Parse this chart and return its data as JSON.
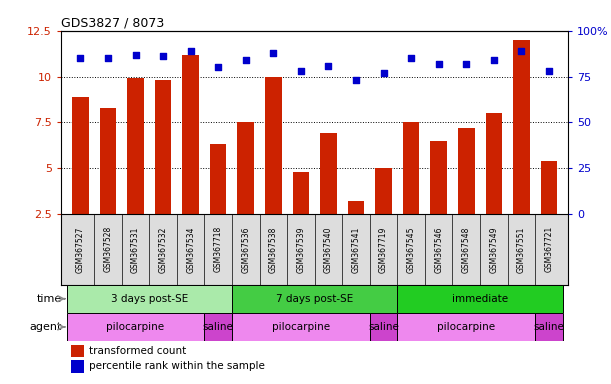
{
  "title": "GDS3827 / 8073",
  "samples": [
    "GSM367527",
    "GSM367528",
    "GSM367531",
    "GSM367532",
    "GSM367534",
    "GSM367718",
    "GSM367536",
    "GSM367538",
    "GSM367539",
    "GSM367540",
    "GSM367541",
    "GSM367719",
    "GSM367545",
    "GSM367546",
    "GSM367548",
    "GSM367549",
    "GSM367551",
    "GSM367721"
  ],
  "bar_values": [
    8.9,
    8.3,
    9.9,
    9.8,
    11.2,
    6.3,
    7.5,
    10.0,
    4.8,
    6.9,
    3.2,
    5.0,
    7.5,
    6.5,
    7.2,
    8.0,
    12.0,
    5.4
  ],
  "dot_values_pct": [
    85,
    85,
    87,
    86,
    89,
    80,
    84,
    88,
    78,
    81,
    73,
    77,
    85,
    82,
    82,
    84,
    89,
    78
  ],
  "bar_color": "#cc2200",
  "dot_color": "#0000cc",
  "ylim_left": [
    2.5,
    12.5
  ],
  "ylim_right": [
    0,
    100
  ],
  "yticks_left": [
    2.5,
    5.0,
    7.5,
    10.0,
    12.5
  ],
  "yticks_right": [
    0,
    25,
    50,
    75,
    100
  ],
  "ytick_labels_left": [
    "2.5",
    "5",
    "7.5",
    "10",
    "12.5"
  ],
  "ytick_labels_right": [
    "0",
    "25",
    "50",
    "75",
    "100%"
  ],
  "time_groups": [
    {
      "label": "3 days post-SE",
      "start": 0,
      "end": 5,
      "color": "#aaeaaa"
    },
    {
      "label": "7 days post-SE",
      "start": 6,
      "end": 11,
      "color": "#44cc44"
    },
    {
      "label": "immediate",
      "start": 12,
      "end": 17,
      "color": "#22cc22"
    }
  ],
  "agent_groups": [
    {
      "label": "pilocarpine",
      "start": 0,
      "end": 4,
      "color": "#ee88ee"
    },
    {
      "label": "saline",
      "start": 5,
      "end": 5,
      "color": "#cc44cc"
    },
    {
      "label": "pilocarpine",
      "start": 6,
      "end": 10,
      "color": "#ee88ee"
    },
    {
      "label": "saline",
      "start": 11,
      "end": 11,
      "color": "#cc44cc"
    },
    {
      "label": "pilocarpine",
      "start": 12,
      "end": 16,
      "color": "#ee88ee"
    },
    {
      "label": "saline",
      "start": 17,
      "end": 17,
      "color": "#cc44cc"
    }
  ],
  "time_label": "time",
  "agent_label": "agent",
  "legend_bar_label": "transformed count",
  "legend_dot_label": "percentile rank within the sample",
  "background_color": "#ffffff",
  "xtick_bg_color": "#dddddd",
  "bar_width": 0.6
}
